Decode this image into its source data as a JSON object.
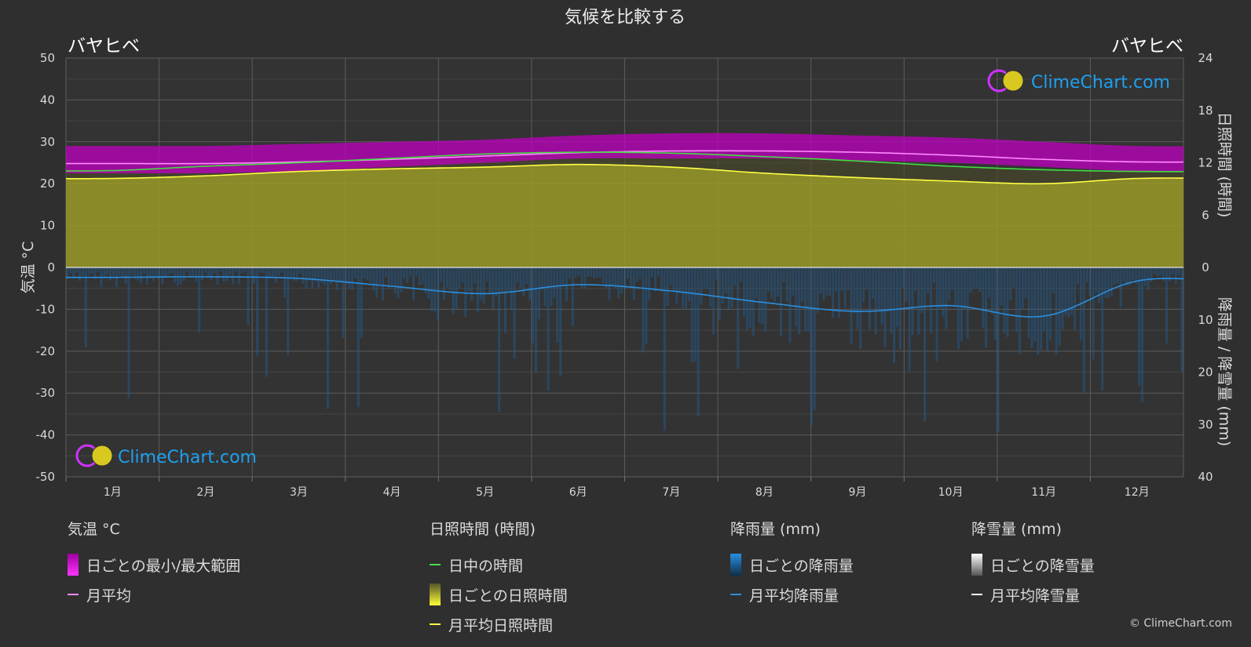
{
  "title": "気候を比較する",
  "location_left": "バヤヒベ",
  "location_right": "バヤヒベ",
  "brand": "ClimeChart.com",
  "copyright": "© ClimeChart.com",
  "axis_left_label": "気温 °C",
  "axis_right_top_label": "日照時間 (時間)",
  "axis_right_bottom_label": "降雨量 / 降雪量 (mm)",
  "colors": {
    "background": "#2f2f2f",
    "temp_range": "#e000e0",
    "temp_avg": "#ff88ff",
    "daylight": "#44dd44",
    "sunshine_fill": "#9a9a28",
    "sunshine_avg": "#ffff44",
    "rain": "#1f73b8",
    "rain_avg": "#2a8fe0",
    "snow_avg": "#ffffff",
    "brand": "#1ea0f0"
  },
  "legend": {
    "temp": {
      "header": "気温 °C",
      "range": "日ごとの最小/最大範囲",
      "avg": "月平均"
    },
    "sun": {
      "header": "日照時間 (時間)",
      "daylight": "日中の時間",
      "daily": "日ごとの日照時間",
      "avg": "月平均日照時間"
    },
    "rain": {
      "header": "降雨量 (mm)",
      "daily": "日ごとの降雨量",
      "avg": "月平均降雨量"
    },
    "snow": {
      "header": "降雪量 (mm)",
      "daily": "日ごとの降雪量",
      "avg": "月平均降雪量"
    }
  },
  "chart_data": {
    "type": "area",
    "categories": [
      "1月",
      "2月",
      "3月",
      "4月",
      "5月",
      "6月",
      "7月",
      "8月",
      "9月",
      "10月",
      "11月",
      "12月"
    ],
    "y_left": {
      "label": "気温 °C",
      "ticks": [
        50,
        40,
        30,
        20,
        10,
        0,
        -10,
        -20,
        -30,
        -40,
        -50
      ],
      "range": [
        -50,
        50
      ]
    },
    "y_right_sun": {
      "label": "日照時間 (時間)",
      "ticks": [
        24,
        18,
        12,
        6,
        0
      ],
      "range": [
        0,
        24
      ]
    },
    "y_right_precip": {
      "label": "降雨量 / 降雪量 (mm)",
      "ticks": [
        0,
        10,
        20,
        30,
        40
      ],
      "range": [
        0,
        40
      ]
    },
    "series": [
      {
        "name": "日ごとの最小/最大範囲",
        "min": [
          22.5,
          22.5,
          23,
          24,
          25,
          26,
          26,
          26,
          25.5,
          25,
          24,
          23
        ],
        "max": [
          29,
          29,
          29.5,
          30,
          30.5,
          31.5,
          32,
          32,
          31.5,
          31,
          30,
          29
        ]
      },
      {
        "name": "月平均",
        "values": [
          24.8,
          24.8,
          25.2,
          25.8,
          26.6,
          27.4,
          27.8,
          27.8,
          27.5,
          26.8,
          25.8,
          25.2
        ]
      },
      {
        "name": "日中の時間",
        "values": [
          11.1,
          11.6,
          12.0,
          12.5,
          13.0,
          13.2,
          13.1,
          12.7,
          12.2,
          11.6,
          11.2,
          11.0
        ]
      },
      {
        "name": "月平均日照時間",
        "values": [
          10.2,
          10.5,
          11.0,
          11.3,
          11.5,
          11.8,
          11.5,
          10.8,
          10.3,
          9.9,
          9.6,
          10.2
        ]
      },
      {
        "name": "月平均降雨量",
        "values": [
          1.9,
          1.8,
          2.1,
          3.6,
          5.0,
          3.3,
          4.5,
          6.7,
          8.4,
          7.3,
          9.3,
          2.6
        ]
      },
      {
        "name": "月平均降雪量",
        "values": [
          0,
          0,
          0,
          0,
          0,
          0,
          0,
          0,
          0,
          0,
          0,
          0
        ]
      }
    ],
    "grid": true
  }
}
